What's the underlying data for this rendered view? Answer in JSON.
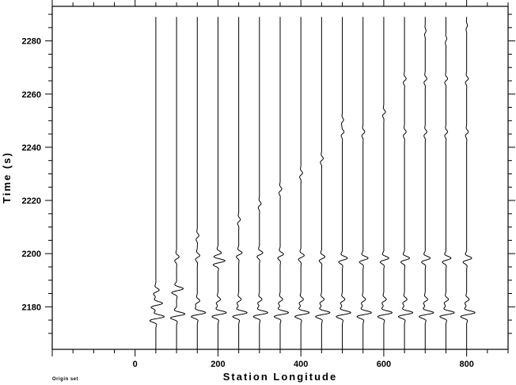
{
  "chart_data": {
    "type": "line",
    "xlabel": "Station Longitude",
    "ylabel": "Time (s)",
    "xlim": [
      -200,
      900
    ],
    "ylim": [
      2164,
      2293
    ],
    "x_ticks": [
      0,
      200,
      400,
      600,
      800
    ],
    "y_ticks": [
      2180,
      2200,
      2220,
      2240,
      2260,
      2280
    ],
    "traces": [
      {
        "station": 50,
        "arrivals": [
          {
            "t": 2175.5,
            "a": 1.0
          },
          {
            "t": 2180.5,
            "a": 0.8
          },
          {
            "t": 2185.5,
            "a": 0.4
          }
        ]
      },
      {
        "station": 100,
        "arrivals": [
          {
            "t": 2176.5,
            "a": 1.0
          },
          {
            "t": 2186,
            "a": 0.8
          },
          {
            "t": 2198,
            "a": 0.3
          }
        ]
      },
      {
        "station": 150,
        "arrivals": [
          {
            "t": 2177,
            "a": 1.0
          },
          {
            "t": 2181.5,
            "a": 0.3
          },
          {
            "t": 2198.5,
            "a": 0.3
          },
          {
            "t": 2206,
            "a": 0.2
          }
        ]
      },
      {
        "station": 200,
        "arrivals": [
          {
            "t": 2177,
            "a": 1.0
          },
          {
            "t": 2182,
            "a": 0.3
          },
          {
            "t": 2196.5,
            "a": 0.8
          },
          {
            "t": 2199.5,
            "a": 0.4
          }
        ]
      },
      {
        "station": 250,
        "arrivals": [
          {
            "t": 2177,
            "a": 1.0
          },
          {
            "t": 2182,
            "a": 0.3
          },
          {
            "t": 2199.5,
            "a": 0.4
          },
          {
            "t": 2212,
            "a": 0.2
          }
        ]
      },
      {
        "station": 300,
        "arrivals": [
          {
            "t": 2177,
            "a": 1.0
          },
          {
            "t": 2182,
            "a": 0.3
          },
          {
            "t": 2199.5,
            "a": 0.4
          },
          {
            "t": 2218,
            "a": 0.2
          }
        ]
      },
      {
        "station": 350,
        "arrivals": [
          {
            "t": 2177,
            "a": 1.0
          },
          {
            "t": 2182,
            "a": 0.3
          },
          {
            "t": 2199,
            "a": 0.4
          },
          {
            "t": 2223.5,
            "a": 0.2
          }
        ]
      },
      {
        "station": 400,
        "arrivals": [
          {
            "t": 2177,
            "a": 1.0
          },
          {
            "t": 2182,
            "a": 0.3
          },
          {
            "t": 2198.5,
            "a": 0.4
          },
          {
            "t": 2229.5,
            "a": 0.2
          }
        ]
      },
      {
        "station": 450,
        "arrivals": [
          {
            "t": 2177,
            "a": 1.0
          },
          {
            "t": 2182,
            "a": 0.3
          },
          {
            "t": 2198,
            "a": 0.4
          },
          {
            "t": 2235,
            "a": 0.2
          }
        ]
      },
      {
        "station": 500,
        "arrivals": [
          {
            "t": 2177,
            "a": 1.0
          },
          {
            "t": 2182,
            "a": 0.3
          },
          {
            "t": 2197.5,
            "a": 0.6
          },
          {
            "t": 2245,
            "a": 0.2
          },
          {
            "t": 2249.5,
            "a": 0.15
          }
        ]
      },
      {
        "station": 550,
        "arrivals": [
          {
            "t": 2177,
            "a": 1.0
          },
          {
            "t": 2182,
            "a": 0.3
          },
          {
            "t": 2197.5,
            "a": 0.6
          },
          {
            "t": 2245,
            "a": 0.2
          }
        ]
      },
      {
        "station": 600,
        "arrivals": [
          {
            "t": 2177,
            "a": 1.0
          },
          {
            "t": 2182,
            "a": 0.3
          },
          {
            "t": 2197.5,
            "a": 0.6
          },
          {
            "t": 2252.5,
            "a": 0.2
          }
        ]
      },
      {
        "station": 650,
        "arrivals": [
          {
            "t": 2177,
            "a": 1.0
          },
          {
            "t": 2182,
            "a": 0.3
          },
          {
            "t": 2197.5,
            "a": 0.6
          },
          {
            "t": 2245,
            "a": 0.2
          },
          {
            "t": 2265,
            "a": 0.2
          }
        ]
      },
      {
        "station": 700,
        "arrivals": [
          {
            "t": 2177,
            "a": 1.0
          },
          {
            "t": 2182,
            "a": 0.3
          },
          {
            "t": 2197.5,
            "a": 0.6
          },
          {
            "t": 2245,
            "a": 0.2
          },
          {
            "t": 2265,
            "a": 0.2
          },
          {
            "t": 2283,
            "a": 0.1
          }
        ]
      },
      {
        "station": 750,
        "arrivals": [
          {
            "t": 2177,
            "a": 1.0
          },
          {
            "t": 2182,
            "a": 0.3
          },
          {
            "t": 2197.5,
            "a": 0.6
          },
          {
            "t": 2245,
            "a": 0.2
          },
          {
            "t": 2265,
            "a": 0.2
          },
          {
            "t": 2280,
            "a": 0.1
          }
        ]
      },
      {
        "station": 800,
        "arrivals": [
          {
            "t": 2177,
            "a": 1.0
          },
          {
            "t": 2182,
            "a": 0.3
          },
          {
            "t": 2197.5,
            "a": 0.6
          },
          {
            "t": 2245,
            "a": 0.2
          },
          {
            "t": 2265,
            "a": 0.2
          },
          {
            "t": 2285,
            "a": 0.1
          }
        ]
      }
    ]
  },
  "footnote": "Origin set"
}
